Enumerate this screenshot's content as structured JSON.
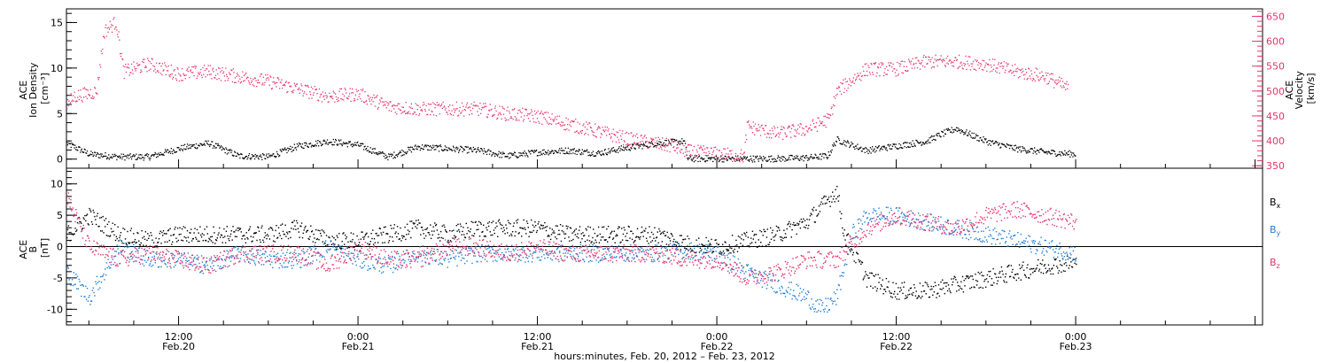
{
  "figure": {
    "x_axis": {
      "title": "hours:minutes, Feb. 20, 2012 – Feb. 23, 2012",
      "ticks": [
        {
          "time": "12:00",
          "date": "Feb.20",
          "hour": 12
        },
        {
          "time": "0:00",
          "date": "Feb.21",
          "hour": 24
        },
        {
          "time": "12:00",
          "date": "Feb.21",
          "hour": 36
        },
        {
          "time": "0:00",
          "date": "Feb.22",
          "hour": 48
        },
        {
          "time": "12:00",
          "date": "Feb.22",
          "hour": 60
        },
        {
          "time": "0:00",
          "date": "Feb.23",
          "hour": 72
        }
      ],
      "range_hours": [
        4.5,
        84.5
      ]
    }
  },
  "colors": {
    "density": "#000000",
    "velocity": "#e8336b",
    "bx": "#000000",
    "by": "#1e7fd8",
    "bz": "#e8336b",
    "axis": "#000000"
  },
  "chart_data": [
    {
      "type": "scatter",
      "panel": "plasma",
      "left_axis": {
        "label_lines": [
          "ACE",
          "Ion Density",
          "[cm⁻³]"
        ],
        "ylim": [
          -1,
          16.5
        ],
        "ticks": [
          0,
          5,
          10,
          15
        ]
      },
      "right_axis": {
        "label_lines": [
          "ACE",
          "Velocity",
          "[km/s]"
        ],
        "ylim": [
          345,
          665
        ],
        "ticks": [
          350,
          400,
          450,
          500,
          550,
          600,
          650
        ]
      },
      "series": [
        {
          "axis": "left",
          "x": [
            4.5,
            6,
            8,
            10,
            12,
            14,
            16,
            18,
            20,
            22,
            24,
            26,
            28,
            30,
            32,
            34,
            36,
            38,
            40,
            42,
            44,
            45.8,
            46,
            48,
            50,
            52,
            54,
            55.4,
            56,
            58,
            60,
            62,
            63,
            64,
            66,
            68,
            70,
            72
          ],
          "y": [
            1.8,
            0.6,
            0.3,
            0.3,
            1.2,
            1.8,
            0.4,
            0.3,
            1.5,
            2.0,
            1.6,
            0.3,
            1.4,
            1.2,
            1.0,
            0.4,
            0.8,
            1.0,
            0.7,
            1.3,
            1.8,
            2.0,
            0.1,
            0.1,
            0.1,
            0.1,
            0.2,
            0.4,
            2.2,
            1.0,
            1.5,
            2.0,
            2.8,
            3.4,
            2.0,
            1.2,
            0.8,
            0.6
          ]
        },
        {
          "axis": "right",
          "x": [
            4.5,
            5,
            6.5,
            7,
            7.8,
            8.3,
            10,
            12,
            14,
            16,
            18,
            20,
            22,
            24,
            26,
            28,
            30,
            32,
            34,
            36,
            38,
            40,
            42,
            44,
            45,
            46,
            48,
            49.8,
            50,
            52,
            54,
            55.5,
            56,
            58,
            60,
            62,
            64,
            66,
            68,
            70,
            71.5
          ],
          "y": [
            475,
            490,
            500,
            620,
            640,
            540,
            555,
            535,
            540,
            530,
            520,
            505,
            490,
            495,
            470,
            465,
            465,
            465,
            455,
            450,
            435,
            420,
            405,
            395,
            390,
            380,
            375,
            370,
            430,
            415,
            425,
            445,
            500,
            545,
            545,
            560,
            560,
            555,
            540,
            530,
            505
          ]
        }
      ]
    },
    {
      "type": "scatter",
      "panel": "magnetic_field",
      "left_axis": {
        "label_lines": [
          "ACE",
          "B",
          "[nT]"
        ],
        "ylim": [
          -12.5,
          12.5
        ],
        "ticks": [
          -10,
          -5,
          0,
          5,
          10
        ]
      },
      "series": [
        {
          "name": "B",
          "subscript": "x",
          "x": [
            4.5,
            6,
            8,
            10,
            12,
            14,
            16,
            18,
            20,
            22,
            24,
            26,
            28,
            30,
            32,
            34,
            36,
            38,
            40,
            42,
            44,
            46,
            48,
            50,
            52,
            54,
            56,
            56.5,
            58,
            60,
            62,
            64,
            66,
            68,
            70,
            72
          ],
          "y": [
            2,
            5,
            2,
            1,
            2,
            2,
            2,
            2,
            3,
            1,
            1,
            2,
            3,
            2,
            3,
            3,
            3,
            2,
            2,
            2,
            2,
            0.5,
            0,
            1,
            2,
            4,
            9,
            2,
            -5,
            -7,
            -7,
            -6,
            -5,
            -4,
            -3,
            -2.5
          ]
        },
        {
          "name": "B",
          "subscript": "y",
          "x": [
            4.5,
            6,
            8,
            10,
            12,
            14,
            16,
            18,
            20,
            22,
            24,
            26,
            28,
            30,
            32,
            34,
            36,
            38,
            40,
            42,
            44,
            46,
            48,
            50,
            52,
            54,
            55,
            56,
            57,
            58,
            60,
            62,
            64,
            66,
            68,
            70,
            72
          ],
          "y": [
            -4,
            -8,
            0,
            -2,
            -2,
            -3,
            -1,
            -2,
            -2,
            0,
            -2,
            -3,
            -1,
            -2,
            -1,
            -1,
            -1,
            -1,
            -1,
            -1,
            -1,
            -0.5,
            -1,
            -4,
            -6,
            -8,
            -10,
            -8,
            2,
            5,
            5,
            4,
            3,
            2,
            1,
            0,
            -1
          ]
        },
        {
          "name": "B",
          "subscript": "z",
          "x": [
            4.5,
            6,
            8,
            10,
            12,
            14,
            16,
            18,
            20,
            22,
            24,
            26,
            28,
            30,
            32,
            34,
            36,
            38,
            40,
            42,
            44,
            46,
            48,
            48.5,
            50,
            52,
            54,
            56,
            58,
            60,
            62,
            64,
            66,
            68,
            70,
            72
          ],
          "y": [
            8,
            0,
            -2,
            -1,
            -2,
            -3,
            -1,
            -1,
            -1,
            -3,
            0,
            -2,
            -2,
            0,
            0,
            -1,
            0,
            -1,
            -1,
            -1,
            -1,
            -2,
            -2,
            -2.5,
            -5,
            -4,
            -2,
            -2,
            3,
            5,
            4,
            3,
            5,
            6,
            5,
            4
          ]
        }
      ],
      "legend": [
        "B_x",
        "B_y",
        "B_z"
      ],
      "legend_placement": "right"
    }
  ]
}
